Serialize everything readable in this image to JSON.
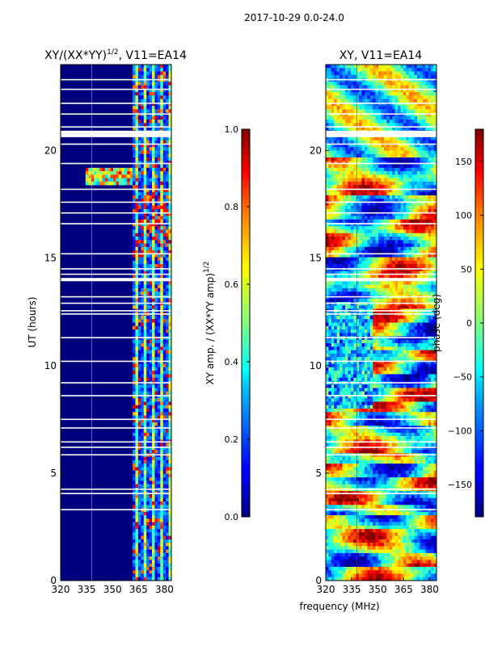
{
  "figure": {
    "suptitle": "2017-10-29 0.0-24.0",
    "shared_xlabel": "frequency (MHz)"
  },
  "chart_data": [
    {
      "type": "heatmap",
      "title": "XY/(XX*YY)",
      "title_sup": "1/2",
      "title_suffix": ", V11=EA14",
      "xlabel": "",
      "ylabel": "UT (hours)",
      "xlim": [
        320,
        384
      ],
      "ylim": [
        0,
        24
      ],
      "x_ticks": [
        320,
        335,
        350,
        365,
        380
      ],
      "y_ticks": [
        0,
        5,
        10,
        15,
        20
      ],
      "colorbar": {
        "label": "XY amp. / (XX*YY amp)",
        "label_sup": "1/2",
        "range": [
          0.0,
          1.0
        ],
        "ticks": [
          "0.0",
          "0.2",
          "0.4",
          "0.6",
          "0.8",
          "1.0"
        ],
        "colormap": "jet"
      },
      "features": {
        "low_amplitude_band_MHz": [
          320,
          361
        ],
        "high_amplitude_band_MHz": [
          361,
          384
        ],
        "rfi_hours": [
          18.4,
          19.2
        ]
      }
    },
    {
      "type": "heatmap",
      "title": "XY, V11=EA14",
      "xlabel": "frequency (MHz)",
      "ylabel": "",
      "xlim": [
        320,
        384
      ],
      "ylim": [
        0,
        24
      ],
      "x_ticks": [
        320,
        335,
        350,
        365,
        380
      ],
      "y_ticks": [
        0,
        5,
        10,
        15,
        20
      ],
      "colorbar": {
        "label": "phase (deg)",
        "range": [
          -180,
          180
        ],
        "ticks": [
          "150",
          "100",
          "50",
          "0",
          "−50",
          "−100",
          "−150"
        ],
        "colormap": "jet"
      }
    }
  ],
  "flag_gaps_hours": [
    3.3,
    4.05,
    4.25,
    5.85,
    6.2,
    6.45,
    7.1,
    7.5,
    8.6,
    9.2,
    10.2,
    11.3,
    12.4,
    12.55,
    12.9,
    13.2,
    14.0,
    14.25,
    14.5,
    15.2,
    16.6,
    17.1,
    17.6,
    18.2,
    19.4,
    20.3,
    20.7,
    20.85,
    21.1,
    21.7,
    22.2,
    22.85,
    23.3
  ]
}
